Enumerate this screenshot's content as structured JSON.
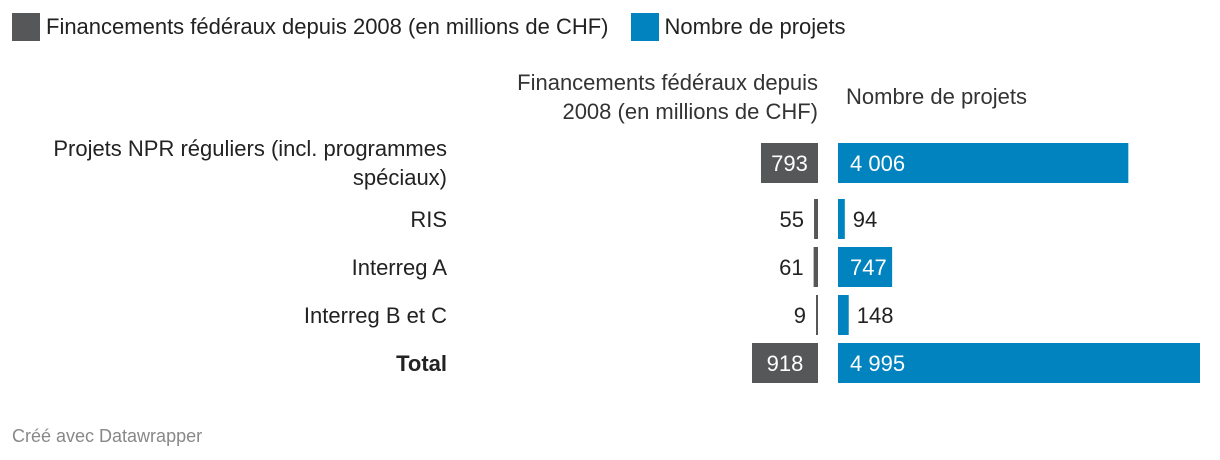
{
  "legend": [
    {
      "label": "Financements fédéraux depuis 2008 (en millions de CHF)",
      "color": "#555758"
    },
    {
      "label": "Nombre de projets",
      "color": "#0083bf"
    }
  ],
  "headers": {
    "funding_line1": "Financements fédéraux depuis",
    "funding_line2": "2008 (en millions de CHF)",
    "projects": "Nombre de projets"
  },
  "rows": {
    "r0_line1": "Projets NPR réguliers (incl. programmes",
    "r0_line2": "spéciaux)",
    "r1": "RIS",
    "r2": "Interreg A",
    "r3": "Interreg B et C",
    "r4": "Total"
  },
  "chart_data": {
    "type": "bar",
    "categories": [
      "Projets NPR réguliers (incl. programmes spéciaux)",
      "RIS",
      "Interreg A",
      "Interreg B et C",
      "Total"
    ],
    "series": [
      {
        "name": "Financements fédéraux depuis 2008 (en millions de CHF)",
        "values": [
          793,
          55,
          61,
          9,
          918
        ],
        "labels": [
          "793",
          "55",
          "61",
          "9",
          "918"
        ],
        "color": "#555758"
      },
      {
        "name": "Nombre de projets",
        "values": [
          4006,
          94,
          747,
          148,
          4995
        ],
        "labels": [
          "4 006",
          "94",
          "747",
          "148",
          "4 995"
        ],
        "color": "#0083bf"
      }
    ]
  },
  "footer": "Créé avec Datawrapper"
}
